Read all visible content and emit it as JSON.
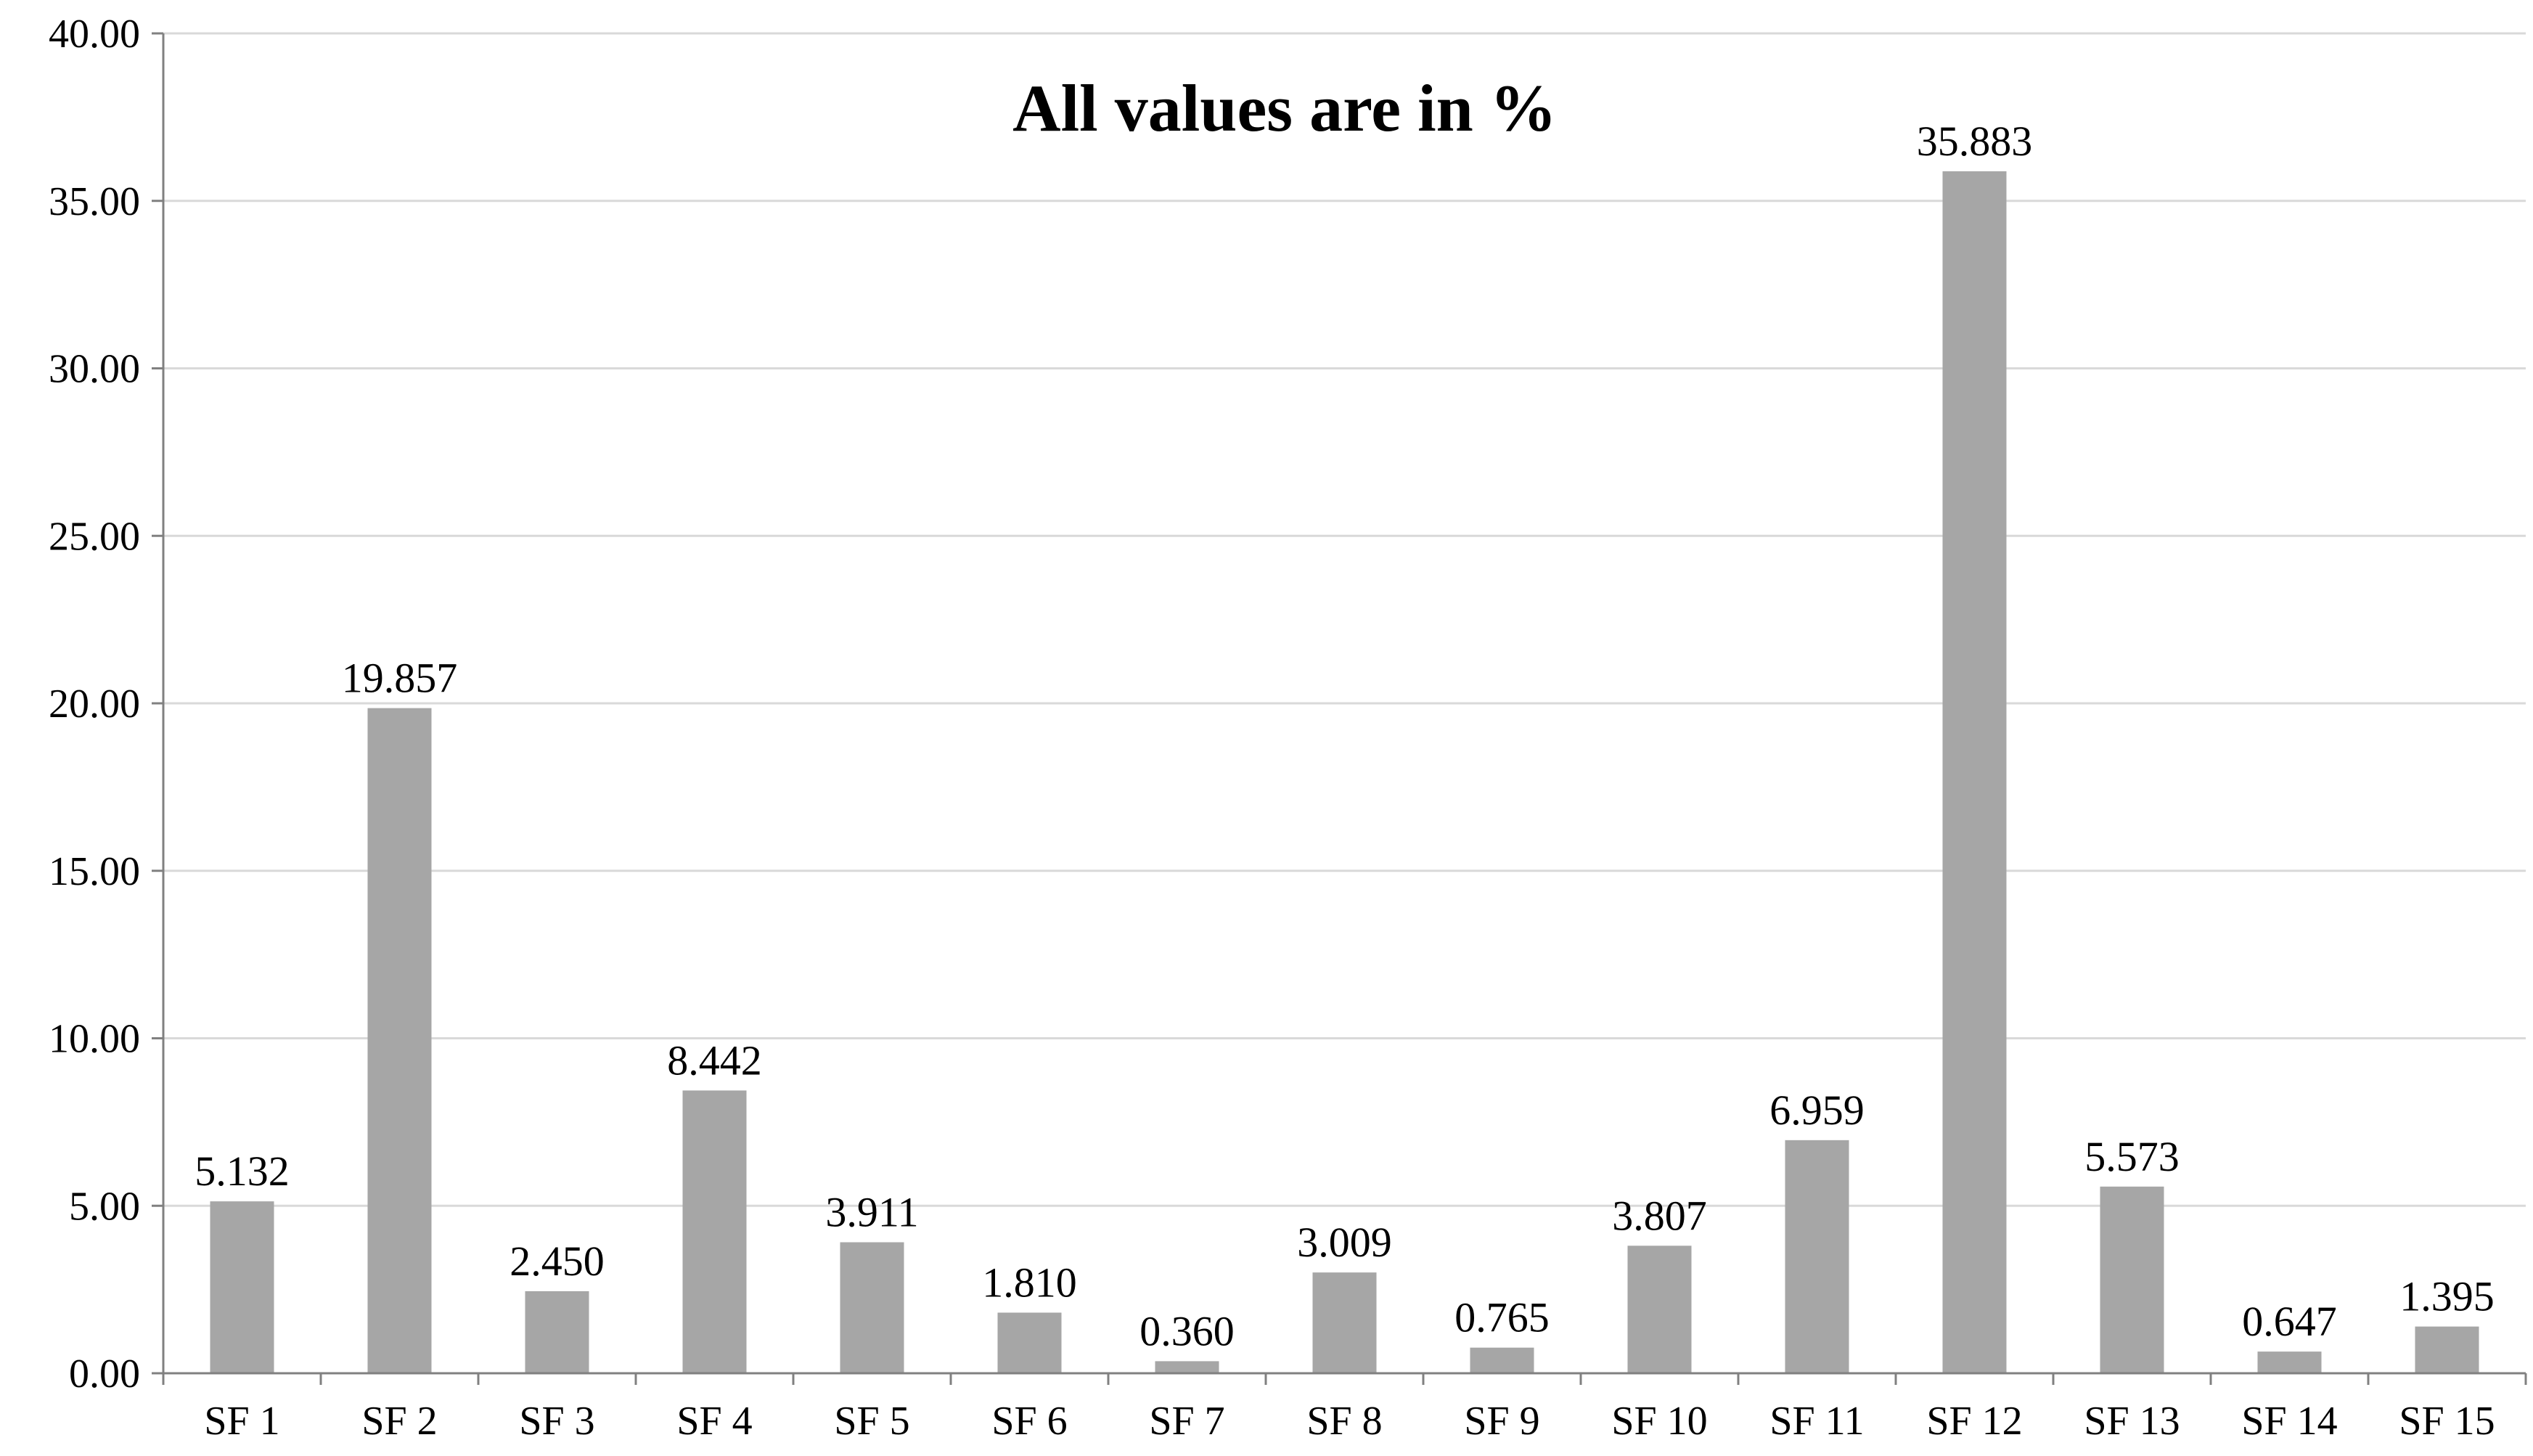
{
  "chart_data": {
    "type": "bar",
    "title": "All values are in %",
    "xlabel": "",
    "ylabel": "",
    "categories": [
      "SF 1",
      "SF 2",
      "SF 3",
      "SF 4",
      "SF 5",
      "SF 6",
      "SF 7",
      "SF 8",
      "SF 9",
      "SF 10",
      "SF 11",
      "SF 12",
      "SF 13",
      "SF 14",
      "SF 15"
    ],
    "values": [
      5.132,
      19.857,
      2.45,
      8.442,
      3.911,
      1.81,
      0.36,
      3.009,
      0.765,
      3.807,
      6.959,
      35.883,
      5.573,
      0.647,
      1.395
    ],
    "data_labels": [
      "5.132",
      "19.857",
      "2.450",
      "8.442",
      "3.911",
      "1.810",
      "0.360",
      "3.009",
      "0.765",
      "3.807",
      "6.959",
      "35.883",
      "5.573",
      "0.647",
      "1.395"
    ],
    "ylim": [
      0,
      40
    ],
    "yticks": [
      0,
      5,
      10,
      15,
      20,
      25,
      30,
      35,
      40
    ],
    "ytick_labels": [
      "0.00",
      "5.00",
      "10.00",
      "15.00",
      "20.00",
      "25.00",
      "30.00",
      "35.00",
      "40.00"
    ],
    "grid": true,
    "legend": "none",
    "colors": {
      "bar": "#a6a6a6",
      "grid": "#d9d9d9",
      "axis": "#808080",
      "text": "#000000"
    }
  }
}
